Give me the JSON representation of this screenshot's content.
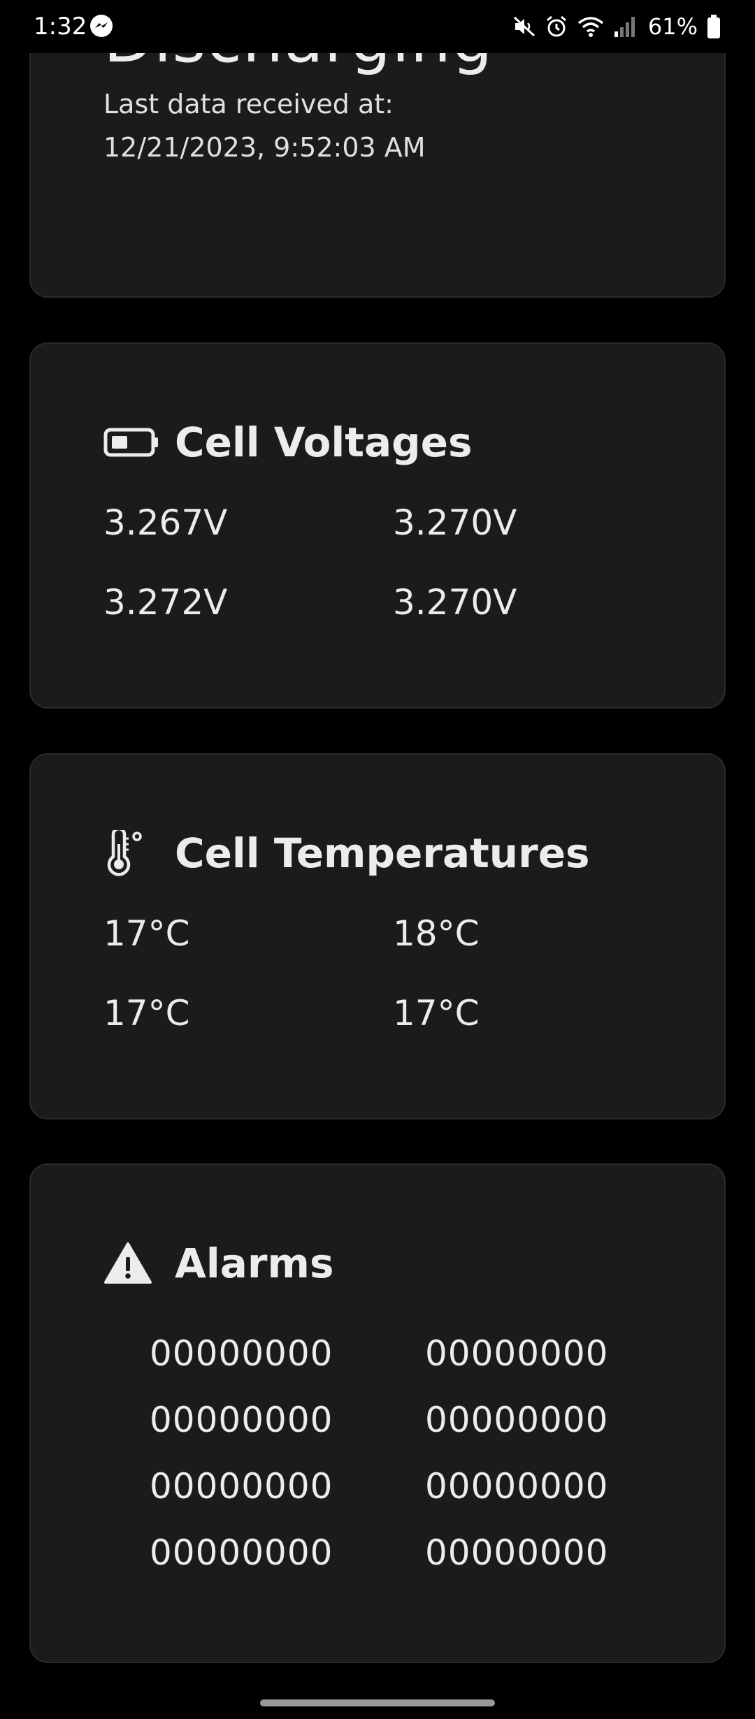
{
  "status_bar": {
    "time": "1:32",
    "battery_percent": "61%",
    "icons": [
      "messenger-icon",
      "mute-icon",
      "alarm-icon",
      "wifi-icon",
      "signal-icon",
      "battery-icon"
    ]
  },
  "status_card": {
    "title": "Discharging",
    "last_data_label": "Last data received at:",
    "last_data_value": "12/21/2023, 9:52:03 AM"
  },
  "voltages_card": {
    "title": "Cell Voltages",
    "icon": "battery-low-icon",
    "values": [
      "3.267V",
      "3.270V",
      "3.272V",
      "3.270V"
    ]
  },
  "temps_card": {
    "title": "Cell Temperatures",
    "icon": "thermometer-icon",
    "values": [
      "17°C",
      "18°C",
      "17°C",
      "17°C"
    ]
  },
  "alarms_card": {
    "title": "Alarms",
    "icon": "warning-icon",
    "values": [
      "00000000",
      "00000000",
      "00000000",
      "00000000",
      "00000000",
      "00000000",
      "00000000",
      "00000000"
    ]
  },
  "colors": {
    "background": "#000000",
    "card": "#1b1b1d",
    "text": "#ececec"
  }
}
